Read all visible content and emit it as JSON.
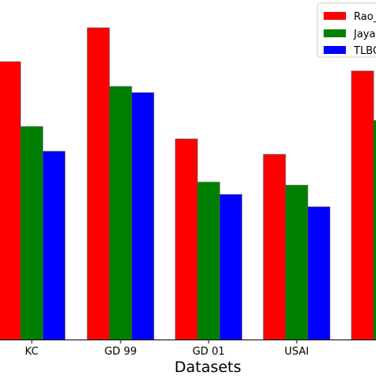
{
  "chart_data": {
    "type": "bar",
    "categories": [
      "KC",
      "GD 99",
      "GD 01",
      "USAI",
      ""
    ],
    "xlabel": "Datasets",
    "ylabel": "",
    "ylim": [
      0,
      110
    ],
    "grid": false,
    "legend_position": "top-right",
    "series": [
      {
        "name": "Rao_",
        "color": "#ff0000",
        "values": [
          90,
          101,
          65,
          60,
          87
        ]
      },
      {
        "name": "Jaya",
        "color": "#008000",
        "values": [
          69,
          82,
          51,
          50,
          71
        ]
      },
      {
        "name": "TLBC",
        "color": "#0000ff",
        "values": [
          61,
          80,
          47,
          43,
          null
        ]
      }
    ]
  }
}
